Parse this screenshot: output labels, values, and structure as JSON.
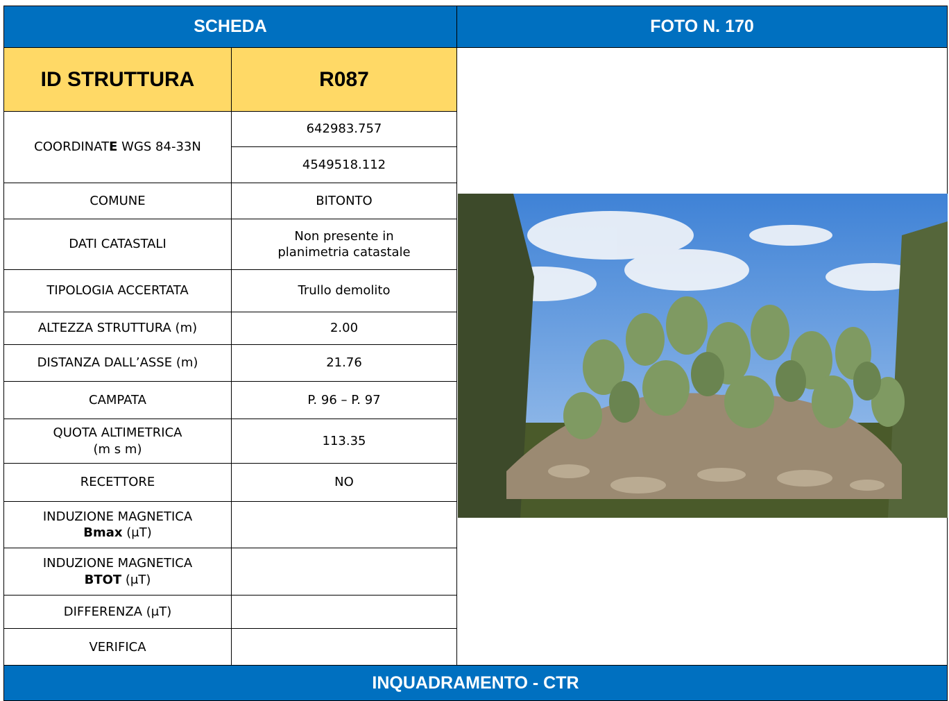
{
  "header": {
    "left": "SCHEDA",
    "right": "FOTO N. 170"
  },
  "id": {
    "label": "ID STRUTTURA",
    "value": "R087"
  },
  "rows": [
    {
      "label": [
        "COORDINAT",
        "E",
        " WGS 84-33N"
      ],
      "values": [
        "642983.757",
        "4549518.112"
      ]
    },
    {
      "label": "COMUNE",
      "value": "BITONTO"
    },
    {
      "label": "DATI CATASTALI",
      "value": [
        "Non presente in",
        "planimetria catastale"
      ]
    },
    {
      "label": "TIPOLOGIA ACCERTATA",
      "value": "Trullo demolito"
    },
    {
      "label": "ALTEZZA STRUTTURA (m)",
      "value": "2.00"
    },
    {
      "label": "DISTANZA DALL’ASSE (m)",
      "value": "21.76"
    },
    {
      "label": "CAMPATA",
      "value": "P. 96 – P. 97"
    },
    {
      "label": [
        "QUOTA ALTIMETRICA",
        "(m s m)"
      ],
      "value": "113.35"
    },
    {
      "label": "RECETTORE",
      "value": "NO"
    },
    {
      "label": [
        "INDUZIONE MAGNETICA",
        "Bmax",
        " (μT)"
      ]
    },
    {
      "label": [
        "INDUZIONE MAGNETICA",
        "BTOT",
        "  (μT)"
      ]
    },
    {
      "label": "DIFFERENZA (μT)"
    },
    {
      "label": "VERIFICA"
    }
  ],
  "footer": "INQUADRAMENTO - CTR"
}
